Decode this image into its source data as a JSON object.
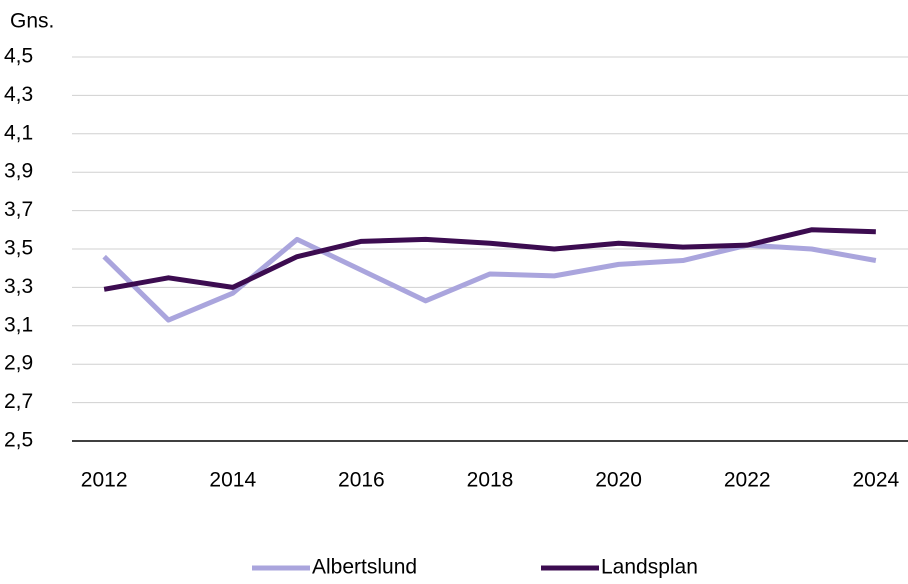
{
  "chart_data": {
    "type": "line",
    "y_label": "Gns.",
    "x": [
      2012,
      2013,
      2014,
      2015,
      2016,
      2017,
      2018,
      2019,
      2020,
      2021,
      2022,
      2023,
      2024
    ],
    "series": [
      {
        "name": "Albertslund",
        "color": "#aaa5dd",
        "values": [
          3.46,
          3.13,
          3.27,
          3.55,
          3.39,
          3.23,
          3.37,
          3.36,
          3.42,
          3.44,
          3.52,
          3.5,
          3.44
        ]
      },
      {
        "name": "Landsplan",
        "color": "#3c0c50",
        "values": [
          3.29,
          3.35,
          3.3,
          3.46,
          3.54,
          3.55,
          3.53,
          3.5,
          3.53,
          3.51,
          3.52,
          3.6,
          3.59
        ]
      }
    ],
    "xlim": [
      2011.5,
      2024.5
    ],
    "xticks": [
      2012,
      2014,
      2016,
      2018,
      2020,
      2022,
      2024
    ],
    "ylim": [
      2.5,
      4.5
    ],
    "yticks": [
      {
        "value": 2.5,
        "label": "2,5"
      },
      {
        "value": 2.7,
        "label": "2,7"
      },
      {
        "value": 2.9,
        "label": "2,9"
      },
      {
        "value": 3.1,
        "label": "3,1"
      },
      {
        "value": 3.3,
        "label": "3,3"
      },
      {
        "value": 3.5,
        "label": "3,5"
      },
      {
        "value": 3.7,
        "label": "3,7"
      },
      {
        "value": 3.9,
        "label": "3,9"
      },
      {
        "value": 4.1,
        "label": "4,1"
      },
      {
        "value": 4.3,
        "label": "4,3"
      },
      {
        "value": 4.5,
        "label": "4,5"
      }
    ],
    "grid": true,
    "legend": "bottom"
  }
}
